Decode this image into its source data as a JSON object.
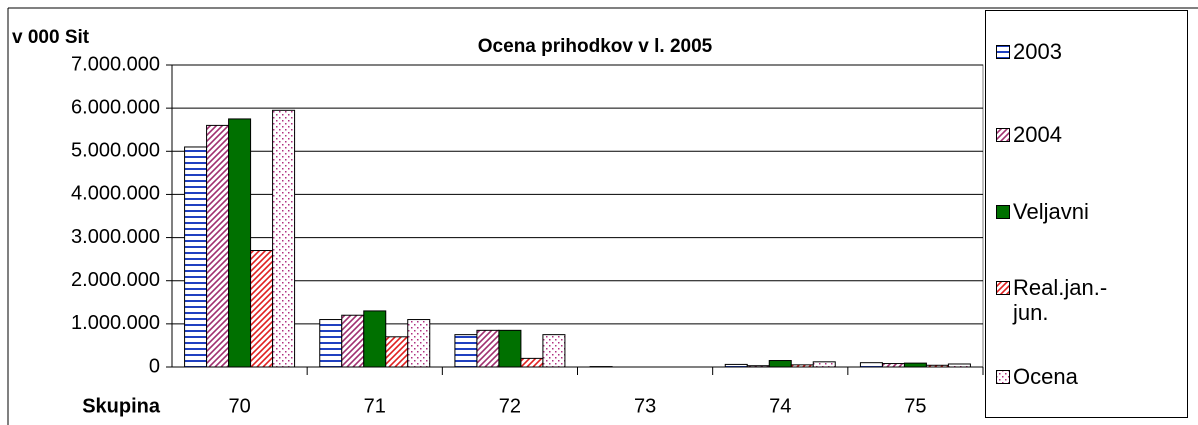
{
  "chart_data": {
    "type": "bar",
    "title": "Ocena prihodkov v l. 2005",
    "y_label": "v 000 Sit",
    "x_label": "Skupina",
    "categories": [
      "70",
      "71",
      "72",
      "73",
      "74",
      "75"
    ],
    "series": [
      {
        "name": "2003",
        "color": "#2040c0",
        "pattern": "horizontal",
        "values": [
          5100000,
          1100000,
          750000,
          10000,
          60000,
          100000
        ]
      },
      {
        "name": "2004",
        "color": "#a03070",
        "pattern": "diagonal",
        "values": [
          5600000,
          1200000,
          850000,
          0,
          30000,
          80000
        ]
      },
      {
        "name": "Veljavni",
        "color": "#007000",
        "pattern": "solid",
        "values": [
          5750000,
          1300000,
          850000,
          0,
          150000,
          90000
        ]
      },
      {
        "name": "Real.jan.-jun.",
        "color": "#e02020",
        "pattern": "diagonal",
        "values": [
          2700000,
          700000,
          200000,
          0,
          50000,
          40000
        ]
      },
      {
        "name": "Ocena",
        "color": "#b03080",
        "pattern": "dots",
        "values": [
          5950000,
          1100000,
          750000,
          0,
          120000,
          70000
        ]
      }
    ],
    "ylim": [
      0,
      7000000
    ],
    "yticks": [
      0,
      {
        "value": 1000000,
        "label": "1.000.000"
      },
      {
        "value": 2000000,
        "label": "2.000.000"
      },
      {
        "value": 3000000,
        "label": "3.000.000"
      },
      {
        "value": 4000000,
        "label": "4.000.000"
      },
      {
        "value": 5000000,
        "label": "5.000.000"
      },
      {
        "value": 6000000,
        "label": "6.000.000"
      },
      {
        "value": 7000000,
        "label": "7.000.000"
      }
    ],
    "grid": true,
    "legend": "right"
  }
}
